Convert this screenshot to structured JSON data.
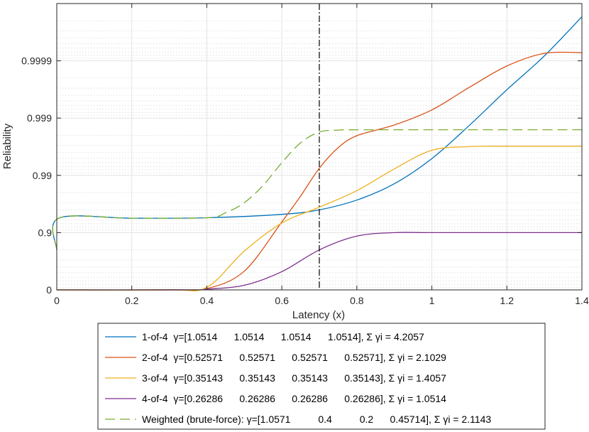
{
  "chart_data": {
    "type": "line",
    "xlabel": "Latency (x)",
    "ylabel": "Reliability",
    "xlim": [
      0,
      1.4
    ],
    "x_ticks": [
      0,
      0.2,
      0.4,
      0.6,
      0.8,
      1,
      1.2,
      1.4
    ],
    "x_tick_labels": [
      "0",
      "0.2",
      "0.4",
      "0.6",
      "0.8",
      "1",
      "1.2",
      "1.4"
    ],
    "y_scale": "log(1/(1-reliability))",
    "ylim": [
      0,
      0.99999
    ],
    "y_ticks": [
      0,
      0.9,
      0.99,
      0.999,
      0.9999
    ],
    "y_tick_labels": [
      "0",
      "0.9",
      "0.99",
      "0.999",
      "0.9999"
    ],
    "grid": true,
    "marker_line": {
      "x": 0.7,
      "style": "dash-dot",
      "color": "#000000"
    },
    "legend_placement": "below",
    "series": [
      {
        "name": "1-of-4",
        "legend_label": "1-of-4  γ=[1.0514      1.0514      1.0514      1.0514], Σ γi = 4.2057",
        "color": "#0072BD",
        "dashed": false,
        "x": [
          0,
          0.005,
          0.2,
          0.4,
          0.6,
          0.7,
          0.8,
          0.9,
          1.0,
          1.1,
          1.2,
          1.3,
          1.4
        ],
        "y": [
          0.8,
          0.944,
          0.944,
          0.945,
          0.952,
          0.96,
          0.973,
          0.986,
          0.9949,
          0.99866,
          0.99968,
          0.999918,
          0.999983
        ]
      },
      {
        "name": "2-of-4",
        "legend_label": "2-of-4  γ=[0.52571      0.52571      0.52571      0.52571], Σ γi = 2.1029",
        "color": "#D95319",
        "dashed": false,
        "x": [
          0,
          0.3,
          0.4,
          0.5,
          0.6,
          0.65,
          0.7,
          0.75,
          0.8,
          0.9,
          1.0,
          1.1,
          1.2,
          1.3,
          1.4
        ],
        "y": [
          0,
          0.0015,
          0.052,
          0.53,
          0.935,
          0.977,
          0.9925,
          0.9967,
          0.99797,
          0.99868,
          0.99928,
          0.99971,
          0.999877,
          0.999926,
          0.999928
        ]
      },
      {
        "name": "3-of-4",
        "legend_label": "3-of-4  γ=[0.35143      0.35143      0.35143      0.35143], Σ γi = 1.4057",
        "color": "#EDB120",
        "dashed": false,
        "x": [
          0,
          0.3,
          0.4,
          0.5,
          0.6,
          0.7,
          0.8,
          0.9,
          1.0,
          1.1,
          1.2,
          1.3,
          1.4
        ],
        "y": [
          0,
          0.002,
          0.1,
          0.79,
          0.932,
          0.964,
          0.9815,
          0.9923,
          0.99635,
          0.99685,
          0.9969,
          0.9969,
          0.9969
        ]
      },
      {
        "name": "4-of-4",
        "legend_label": "4-of-4  γ=[0.26286      0.26286      0.26286      0.26286], Σ γi = 1.0514",
        "color": "#7E2F8E",
        "dashed": false,
        "x": [
          0,
          0.35,
          0.4,
          0.5,
          0.6,
          0.7,
          0.8,
          0.9,
          1.0,
          1.2,
          1.4
        ],
        "y": [
          0,
          0.002,
          0.028,
          0.17,
          0.52,
          0.8,
          0.885,
          0.9,
          0.9,
          0.9,
          0.9
        ]
      },
      {
        "name": "Weighted (brute-force)",
        "legend_label": "Weighted (brute-force): γ=[1.0571          0.4          0.2      0.45714], Σ γi = 2.1143",
        "color": "#77AC30",
        "dashed": true,
        "x": [
          0,
          0.005,
          0.2,
          0.4,
          0.45,
          0.5,
          0.55,
          0.6,
          0.65,
          0.7,
          0.75,
          0.8,
          1.0,
          1.2,
          1.4
        ],
        "y": [
          0.8,
          0.944,
          0.944,
          0.945,
          0.955,
          0.97,
          0.985,
          0.994,
          0.9973,
          0.99825,
          0.99838,
          0.9984,
          0.9984,
          0.9984,
          0.9984
        ]
      }
    ]
  }
}
